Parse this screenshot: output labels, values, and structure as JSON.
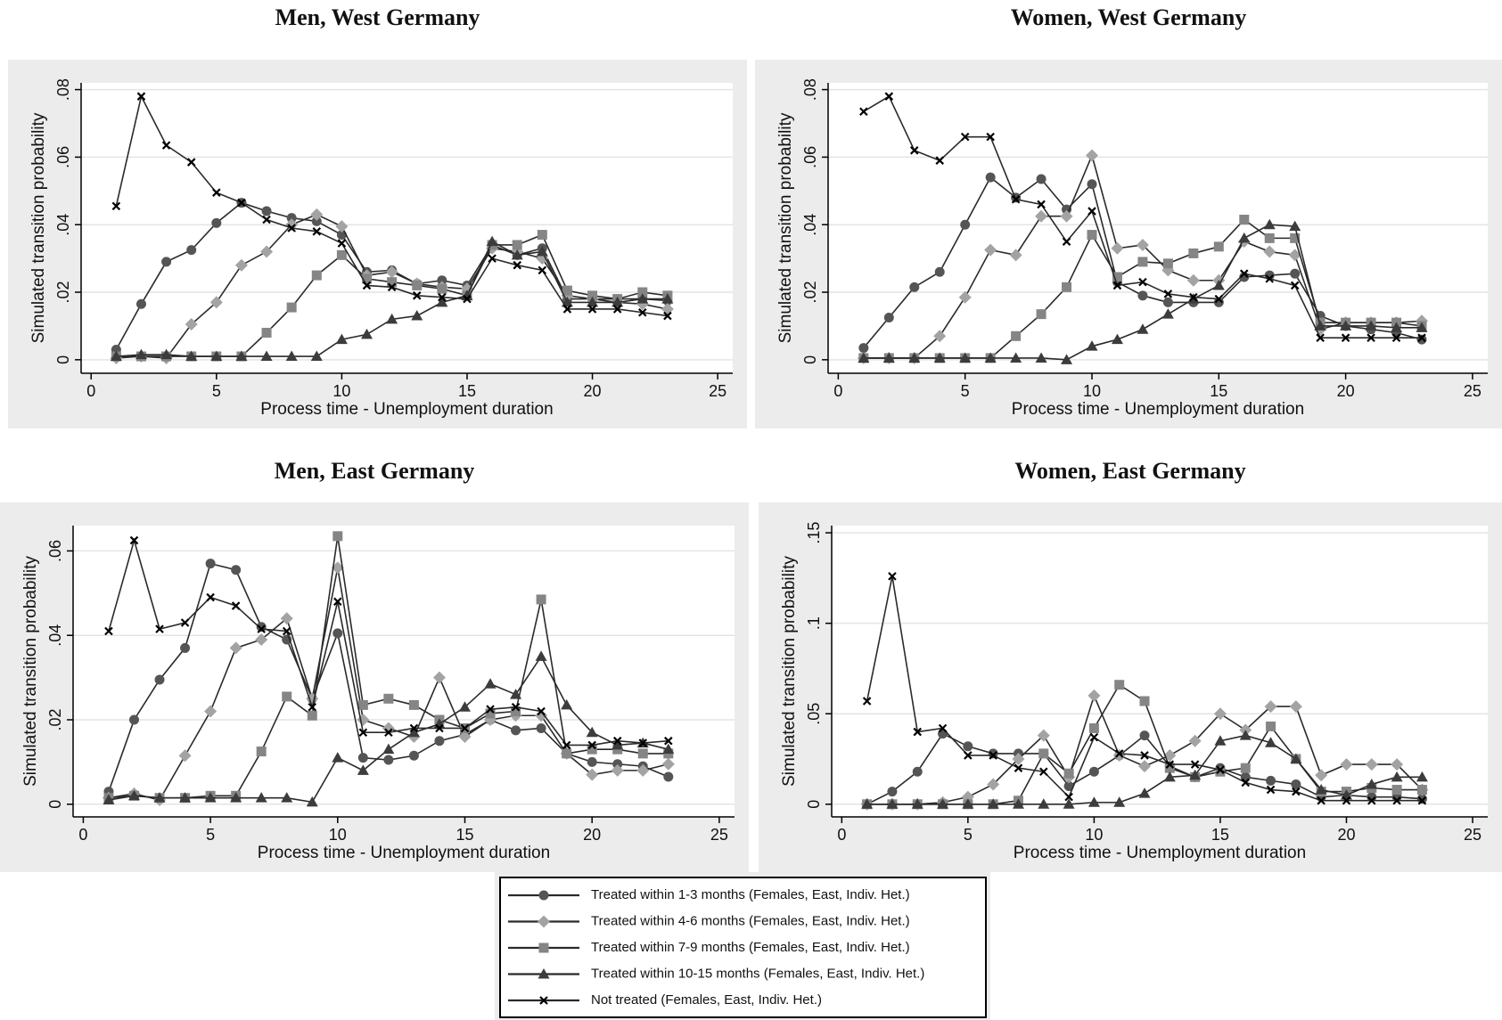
{
  "chart_data": [
    {
      "type": "line",
      "title": "Men, West Germany",
      "ylabel": "Simulated transition probability",
      "xlabel": "Process time  - Unemployment duration",
      "x": [
        1,
        2,
        3,
        4,
        5,
        6,
        7,
        8,
        9,
        10,
        11,
        12,
        13,
        14,
        15,
        16,
        17,
        18,
        19,
        20,
        21,
        22,
        23
      ],
      "xlim": [
        -0.4,
        25.6
      ],
      "xticks": [
        0,
        5,
        10,
        15,
        20,
        25
      ],
      "ylim": [
        -0.004,
        0.082
      ],
      "yticks": [
        0,
        {
          "value": 0.02,
          "label": ".02"
        },
        {
          "value": 0.04,
          "label": ".04"
        },
        {
          "value": 0.06,
          "label": ".06"
        },
        {
          "value": 0.08,
          "label": ".08"
        }
      ],
      "grid": true,
      "series": [
        {
          "values": [
            0.003,
            0.0165,
            0.029,
            0.0325,
            0.0405,
            0.0465,
            0.044,
            0.042,
            0.041,
            0.037,
            0.026,
            0.0265,
            0.0225,
            0.0235,
            0.022,
            0.034,
            0.031,
            0.033,
            0.018,
            0.018,
            0.018,
            0.018,
            0.0175
          ]
        },
        {
          "values": [
            0.0005,
            0.001,
            0.0005,
            0.0105,
            0.017,
            0.028,
            0.032,
            0.04,
            0.043,
            0.0395,
            0.025,
            0.026,
            0.0225,
            0.0215,
            0.021,
            0.033,
            0.032,
            0.03,
            0.019,
            0.018,
            0.017,
            0.0165,
            0.015
          ]
        },
        {
          "values": [
            0.001,
            0.001,
            0.001,
            0.001,
            0.001,
            0.001,
            0.008,
            0.0155,
            0.025,
            0.031,
            0.024,
            0.023,
            0.022,
            0.021,
            0.019,
            0.034,
            0.034,
            0.037,
            0.0205,
            0.019,
            0.018,
            0.02,
            0.019
          ]
        },
        {
          "values": [
            0.001,
            0.0015,
            0.0015,
            0.001,
            0.001,
            0.001,
            0.001,
            0.001,
            0.001,
            0.006,
            0.0075,
            0.012,
            0.013,
            0.017,
            0.019,
            0.035,
            0.031,
            0.032,
            0.017,
            0.017,
            0.017,
            0.018,
            0.018
          ]
        },
        {
          "values": [
            0.0455,
            0.078,
            0.0635,
            0.0585,
            0.0495,
            0.0465,
            0.0415,
            0.039,
            0.038,
            0.0345,
            0.022,
            0.0215,
            0.019,
            0.0185,
            0.018,
            0.03,
            0.028,
            0.0265,
            0.015,
            0.015,
            0.015,
            0.014,
            0.013
          ]
        }
      ]
    },
    {
      "type": "line",
      "title": "Women, West Germany",
      "ylabel": "Simulated transition probability",
      "xlabel": "Process time  - Unemployment duration",
      "x": [
        1,
        2,
        3,
        4,
        5,
        6,
        7,
        8,
        9,
        10,
        11,
        12,
        13,
        14,
        15,
        16,
        17,
        18,
        19,
        20,
        21,
        22,
        23
      ],
      "xlim": [
        -0.4,
        25.6
      ],
      "xticks": [
        0,
        5,
        10,
        15,
        20,
        25
      ],
      "ylim": [
        -0.004,
        0.082
      ],
      "yticks": [
        0,
        {
          "value": 0.02,
          "label": ".02"
        },
        {
          "value": 0.04,
          "label": ".04"
        },
        {
          "value": 0.06,
          "label": ".06"
        },
        {
          "value": 0.08,
          "label": ".08"
        }
      ],
      "grid": true,
      "series": [
        {
          "values": [
            0.0035,
            0.0125,
            0.0215,
            0.026,
            0.04,
            0.054,
            0.048,
            0.0535,
            0.0445,
            0.052,
            0.023,
            0.019,
            0.017,
            0.017,
            0.017,
            0.0245,
            0.025,
            0.0255,
            0.013,
            0.01,
            0.009,
            0.008,
            0.006
          ]
        },
        {
          "values": [
            0.0005,
            0.0005,
            0.0005,
            0.007,
            0.0185,
            0.0325,
            0.031,
            0.0425,
            0.0425,
            0.0605,
            0.033,
            0.034,
            0.0265,
            0.0235,
            0.0235,
            0.035,
            0.032,
            0.031,
            0.009,
            0.011,
            0.011,
            0.011,
            0.0115
          ]
        },
        {
          "values": [
            0.0005,
            0.0005,
            0.0005,
            0.0005,
            0.0005,
            0.0005,
            0.007,
            0.0135,
            0.0215,
            0.037,
            0.0245,
            0.029,
            0.0285,
            0.0315,
            0.0335,
            0.0415,
            0.036,
            0.036,
            0.011,
            0.011,
            0.011,
            0.011,
            0.01
          ]
        },
        {
          "values": [
            0.0005,
            0.0005,
            0.0005,
            0.0005,
            0.0005,
            0.0005,
            0.0005,
            0.0005,
            0,
            0.004,
            0.006,
            0.009,
            0.0135,
            0.018,
            0.022,
            0.036,
            0.04,
            0.0395,
            0.01,
            0.01,
            0.01,
            0.0095,
            0.0095
          ]
        },
        {
          "values": [
            0.0735,
            0.078,
            0.062,
            0.059,
            0.066,
            0.066,
            0.0475,
            0.046,
            0.035,
            0.044,
            0.022,
            0.023,
            0.0195,
            0.0185,
            0.018,
            0.0255,
            0.024,
            0.022,
            0.0065,
            0.0065,
            0.0065,
            0.0065,
            0.0065
          ]
        }
      ]
    },
    {
      "type": "line",
      "title": "Men, East Germany",
      "ylabel": "Simulated transition probability",
      "xlabel": "Process time  - Unemployment duration",
      "x": [
        1,
        2,
        3,
        4,
        5,
        6,
        7,
        8,
        9,
        10,
        11,
        12,
        13,
        14,
        15,
        16,
        17,
        18,
        19,
        20,
        21,
        22,
        23
      ],
      "xlim": [
        -0.4,
        25.6
      ],
      "xticks": [
        0,
        5,
        10,
        15,
        20,
        25
      ],
      "ylim": [
        -0.003,
        0.066
      ],
      "yticks": [
        0,
        {
          "value": 0.02,
          "label": ".02"
        },
        {
          "value": 0.04,
          "label": ".04"
        },
        {
          "value": 0.06,
          "label": ".06"
        }
      ],
      "grid": true,
      "series": [
        {
          "values": [
            0.003,
            0.02,
            0.0295,
            0.037,
            0.057,
            0.0555,
            0.042,
            0.039,
            0.025,
            0.0405,
            0.011,
            0.0105,
            0.0115,
            0.015,
            0.0165,
            0.02,
            0.0175,
            0.018,
            0.012,
            0.01,
            0.0095,
            0.009,
            0.0065
          ]
        },
        {
          "values": [
            0.0015,
            0.0025,
            0.001,
            0.0115,
            0.022,
            0.037,
            0.039,
            0.044,
            0.025,
            0.056,
            0.02,
            0.018,
            0.016,
            0.03,
            0.016,
            0.02,
            0.021,
            0.021,
            0.012,
            0.007,
            0.008,
            0.008,
            0.0095
          ]
        },
        {
          "values": [
            0.0015,
            0.002,
            0.0015,
            0.0015,
            0.002,
            0.002,
            0.0125,
            0.0255,
            0.021,
            0.0635,
            0.0235,
            0.025,
            0.0235,
            0.02,
            0.018,
            0.0215,
            0.022,
            0.0485,
            0.012,
            0.013,
            0.013,
            0.012,
            0.012
          ]
        },
        {
          "values": [
            0.001,
            0.002,
            0.0015,
            0.0015,
            0.0015,
            0.0015,
            0.0015,
            0.0015,
            0.0005,
            0.011,
            0.008,
            0.013,
            0.017,
            0.019,
            0.023,
            0.0285,
            0.026,
            0.035,
            0.0235,
            0.017,
            0.014,
            0.0145,
            0.013
          ]
        },
        {
          "values": [
            0.041,
            0.0625,
            0.0415,
            0.043,
            0.049,
            0.047,
            0.0415,
            0.041,
            0.023,
            0.048,
            0.017,
            0.017,
            0.018,
            0.018,
            0.018,
            0.0225,
            0.023,
            0.022,
            0.014,
            0.014,
            0.015,
            0.0145,
            0.015
          ]
        }
      ]
    },
    {
      "type": "line",
      "title": "Women, East Germany",
      "ylabel": "Simulated transition probability",
      "xlabel": "Process time  - Unemployment duration",
      "x": [
        1,
        2,
        3,
        4,
        5,
        6,
        7,
        8,
        9,
        10,
        11,
        12,
        13,
        14,
        15,
        16,
        17,
        18,
        19,
        20,
        21,
        22,
        23
      ],
      "xlim": [
        -0.4,
        25.6
      ],
      "xticks": [
        0,
        5,
        10,
        15,
        20,
        25
      ],
      "ylim": [
        -0.007,
        0.154
      ],
      "yticks": [
        0,
        {
          "value": 0.05,
          "label": ".05"
        },
        {
          "value": 0.1,
          "label": ".1"
        },
        {
          "value": 0.15,
          "label": ".15"
        }
      ],
      "grid": true,
      "series": [
        {
          "values": [
            0,
            0.007,
            0.018,
            0.039,
            0.032,
            0.028,
            0.028,
            0.028,
            0.01,
            0.018,
            0.027,
            0.038,
            0.021,
            0.015,
            0.02,
            0.015,
            0.013,
            0.011,
            0.004,
            0.005,
            0.004,
            0.004,
            0.003
          ]
        },
        {
          "values": [
            0,
            0,
            0,
            0.001,
            0.004,
            0.011,
            0.025,
            0.038,
            0.015,
            0.06,
            0.027,
            0.021,
            0.027,
            0.035,
            0.05,
            0.041,
            0.054,
            0.054,
            0.016,
            0.022,
            0.022,
            0.022,
            0.008
          ]
        },
        {
          "values": [
            0,
            0,
            0,
            0,
            0,
            0,
            0.002,
            0.028,
            0.017,
            0.042,
            0.066,
            0.057,
            0.02,
            0.015,
            0.018,
            0.02,
            0.043,
            0.025,
            0.007,
            0.007,
            0.009,
            0.008,
            0.008
          ]
        },
        {
          "values": [
            0,
            0,
            0,
            0,
            0,
            0,
            0,
            0,
            0,
            0.001,
            0.001,
            0.006,
            0.015,
            0.016,
            0.035,
            0.038,
            0.034,
            0.025,
            0.008,
            0.005,
            0.011,
            0.015,
            0.015
          ]
        },
        {
          "values": [
            0.057,
            0.126,
            0.04,
            0.042,
            0.027,
            0.027,
            0.02,
            0.018,
            0.004,
            0.037,
            0.028,
            0.027,
            0.022,
            0.022,
            0.019,
            0.012,
            0.008,
            0.007,
            0.002,
            0.002,
            0.002,
            0.002,
            0.002
          ]
        }
      ]
    }
  ],
  "line_color": "#2a2a2a",
  "legend": [
    {
      "name": "Treated within 1-3 months (Females, East, Indiv. Het.)",
      "color": "#555555",
      "marker": "circle"
    },
    {
      "name": "Treated within 4-6 months (Females, East, Indiv. Het.)",
      "color": "#a3a3a3",
      "marker": "diamond"
    },
    {
      "name": "Treated within 7-9 months (Females, East, Indiv. Het.)",
      "color": "#858585",
      "marker": "square"
    },
    {
      "name": "Treated within 10-15 months (Females, East, Indiv. Het.)",
      "color": "#3c3c3c",
      "marker": "triangle"
    },
    {
      "name": "Not treated (Females, East, Indiv. Het.)",
      "color": "#000000",
      "marker": "x"
    }
  ]
}
